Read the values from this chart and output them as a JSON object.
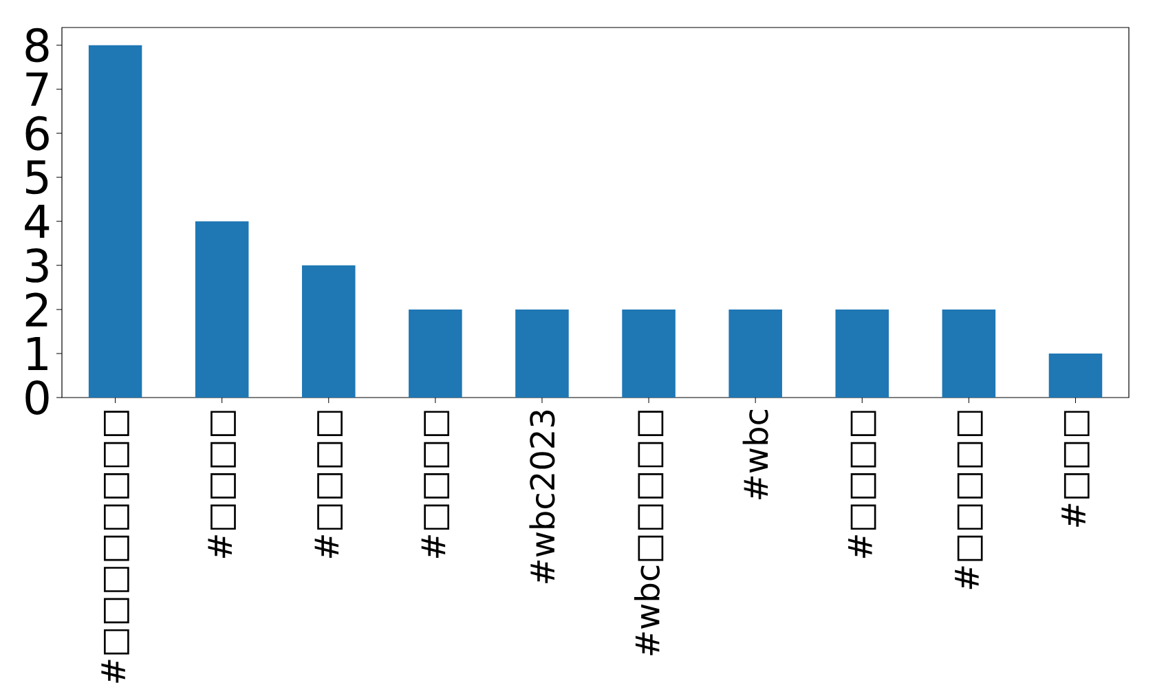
{
  "chart_data": {
    "type": "bar",
    "categories": [
      "#□□□□□□□□",
      "#□□□□",
      "#□□□□",
      "#□□□□",
      "#wbc2023",
      "#wbc□□□□□",
      "#wbc",
      "#□□□□",
      "#□□□□□",
      "#□□□"
    ],
    "values": [
      8,
      4,
      3,
      2,
      2,
      2,
      2,
      2,
      2,
      1
    ],
    "color": "#1f77b4",
    "ylim": [
      0,
      8.4
    ],
    "yticks": [
      0,
      1,
      2,
      3,
      4,
      5,
      6,
      7,
      8
    ]
  }
}
